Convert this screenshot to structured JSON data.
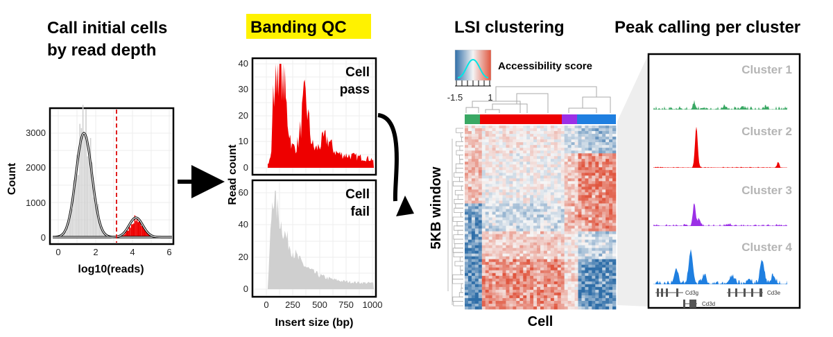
{
  "colors": {
    "gray_bar": "#cfcfcf",
    "red": "#ee0000",
    "green": "#3aa864",
    "purple": "#9b30e6",
    "blue": "#1f7fe0",
    "heat_red": "#e0563f",
    "heat_blue": "#2f6ea8",
    "highlight": "#fff200"
  },
  "panel1": {
    "title_line1": "Call initial cells",
    "title_line2": "by read depth",
    "xlabel": "log10(reads)",
    "ylabel": "Count",
    "xticks": [
      "0",
      "2",
      "4",
      "6"
    ],
    "yticks": [
      "0",
      "1000",
      "2000",
      "3000"
    ]
  },
  "panel2": {
    "title": "Banding QC",
    "xlabel": "Insert size (bp)",
    "ylabel": "Read count",
    "pass_label_line1": "Cell",
    "pass_label_line2": "pass",
    "fail_label_line1": "Cell",
    "fail_label_line2": "fail",
    "pass_yticks": [
      "0",
      "10",
      "20",
      "30",
      "40"
    ],
    "fail_yticks": [
      "0",
      "20",
      "40",
      "60"
    ],
    "xticks": [
      "0",
      "250",
      "500",
      "750",
      "1000"
    ]
  },
  "panel3": {
    "title": "LSI clustering",
    "legend_title": "Accessibility score",
    "legend_min": "-1.5",
    "legend_max": "1",
    "xlabel": "Cell",
    "ylabel": "5KB window"
  },
  "panel4": {
    "title": "Peak calling per cluster",
    "clusters": [
      "Cluster 1",
      "Cluster 2",
      "Cluster 3",
      "Cluster 4"
    ],
    "genes": [
      "Cd3g",
      "Cd3e",
      "Cd3d"
    ]
  }
}
